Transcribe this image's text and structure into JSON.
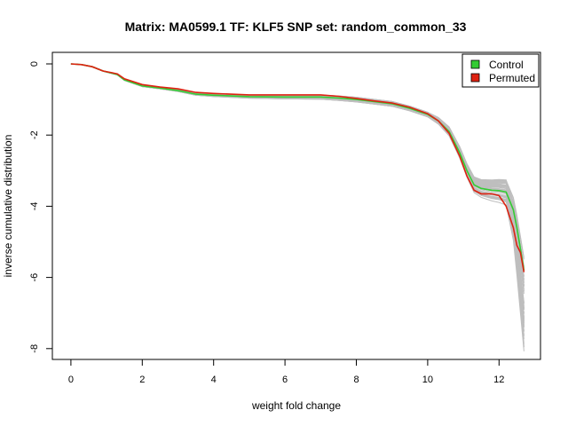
{
  "chart_data": {
    "type": "line",
    "title": "Matrix: MA0599.1 TF: KLF5 SNP set: random_common_33",
    "xlabel": "weight fold change",
    "ylabel": "inverse cumulative distribution",
    "xlim": [
      0,
      12.7
    ],
    "ylim": [
      -8,
      0
    ],
    "x_ticks": [
      0,
      2,
      4,
      6,
      8,
      10,
      12
    ],
    "y_ticks": [
      0,
      -2,
      -4,
      -6,
      -8
    ],
    "legend_position": "top-right",
    "grid": false,
    "colors": {
      "control": "#33cc33",
      "permuted": "#dd2211",
      "background_runs": "#bebebe"
    },
    "legend": [
      "Control",
      "Permuted"
    ],
    "series": [
      {
        "name": "Control",
        "x": [
          0,
          0.3,
          0.6,
          0.9,
          1.3,
          1.5,
          2.0,
          2.5,
          3.0,
          3.5,
          4.0,
          5.0,
          6.0,
          7.0,
          7.5,
          8.0,
          8.5,
          9.0,
          9.5,
          10.0,
          10.3,
          10.6,
          10.9,
          11.1,
          11.3,
          11.5,
          11.8,
          12.0,
          12.2,
          12.4,
          12.5,
          12.6,
          12.7
        ],
        "y": [
          0,
          -0.02,
          -0.08,
          -0.2,
          -0.3,
          -0.45,
          -0.62,
          -0.68,
          -0.75,
          -0.85,
          -0.88,
          -0.92,
          -0.93,
          -0.93,
          -0.96,
          -1.0,
          -1.06,
          -1.12,
          -1.25,
          -1.42,
          -1.6,
          -1.9,
          -2.5,
          -3.0,
          -3.4,
          -3.5,
          -3.55,
          -3.56,
          -3.6,
          -4.1,
          -4.6,
          -5.2,
          -5.8
        ]
      },
      {
        "name": "Permuted",
        "x": [
          0,
          0.3,
          0.6,
          0.9,
          1.3,
          1.5,
          2.0,
          2.5,
          3.0,
          3.5,
          4.0,
          5.0,
          6.0,
          7.0,
          7.5,
          8.0,
          8.5,
          9.0,
          9.5,
          10.0,
          10.3,
          10.6,
          10.9,
          11.1,
          11.3,
          11.5,
          11.8,
          12.0,
          12.2,
          12.4,
          12.5,
          12.6,
          12.7
        ],
        "y": [
          0,
          -0.02,
          -0.08,
          -0.2,
          -0.28,
          -0.42,
          -0.58,
          -0.65,
          -0.7,
          -0.8,
          -0.83,
          -0.87,
          -0.87,
          -0.87,
          -0.91,
          -0.97,
          -1.04,
          -1.1,
          -1.22,
          -1.4,
          -1.6,
          -1.95,
          -2.6,
          -3.15,
          -3.55,
          -3.65,
          -3.65,
          -3.7,
          -4.0,
          -4.6,
          -5.1,
          -5.3,
          -5.85
        ]
      }
    ]
  }
}
